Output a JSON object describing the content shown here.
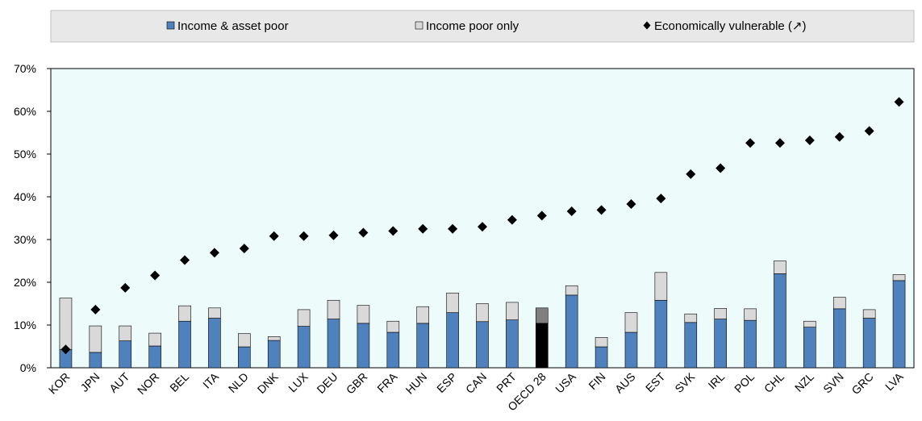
{
  "chart_data": {
    "type": "bar",
    "stacked": true,
    "categories": [
      "KOR",
      "JPN",
      "AUT",
      "NOR",
      "BEL",
      "ITA",
      "NLD",
      "DNK",
      "LUX",
      "DEU",
      "GBR",
      "FRA",
      "HUN",
      "ESP",
      "CAN",
      "PRT",
      "OECD 28",
      "USA",
      "FIN",
      "AUS",
      "EST",
      "SVK",
      "IRL",
      "POL",
      "CHL",
      "NZL",
      "SVN",
      "GRC",
      "LVA"
    ],
    "highlight_category": "OECD 28",
    "series": [
      {
        "name": "Income & asset poor",
        "kind": "bar",
        "color": "#4f81bd",
        "values": [
          4.3,
          3.6,
          6.3,
          5.1,
          10.9,
          11.6,
          4.9,
          6.4,
          9.7,
          11.4,
          10.4,
          8.3,
          10.4,
          12.9,
          10.8,
          11.2,
          10.4,
          17.0,
          4.9,
          8.3,
          15.8,
          10.6,
          11.4,
          11.1,
          22.0,
          9.5,
          13.8,
          11.6,
          20.4
        ]
      },
      {
        "name": "Income poor only",
        "kind": "bar",
        "color": "#d9d9d9",
        "values": [
          12.0,
          6.2,
          3.5,
          3.0,
          3.6,
          2.4,
          3.1,
          0.9,
          3.9,
          4.4,
          4.2,
          2.6,
          3.9,
          4.6,
          4.2,
          4.1,
          3.6,
          2.2,
          2.2,
          4.6,
          6.5,
          2.0,
          2.5,
          2.7,
          3.0,
          1.4,
          2.7,
          2.0,
          1.4
        ]
      },
      {
        "name": "Economically vulnerable (↗)",
        "kind": "marker",
        "color": "#000000",
        "values": [
          4.3,
          13.6,
          18.7,
          21.6,
          25.2,
          26.9,
          27.9,
          30.8,
          30.8,
          31.0,
          31.6,
          32.0,
          32.5,
          32.5,
          33.0,
          34.6,
          35.6,
          36.6,
          36.9,
          38.3,
          39.6,
          45.3,
          46.7,
          52.6,
          52.6,
          53.2,
          54.0,
          55.4,
          62.2
        ]
      }
    ],
    "highlight_colors": [
      "#000000",
      "#808080"
    ],
    "ylim": [
      0,
      70
    ],
    "yticks": [
      0,
      10,
      20,
      30,
      40,
      50,
      60,
      70
    ],
    "ytick_labels": [
      "0%",
      "10%",
      "20%",
      "30%",
      "40%",
      "50%",
      "60%",
      "70%"
    ],
    "plot_background": "#eefbfb",
    "legend_background": "#e8e8e8",
    "legend_position": "top",
    "grid": false
  }
}
